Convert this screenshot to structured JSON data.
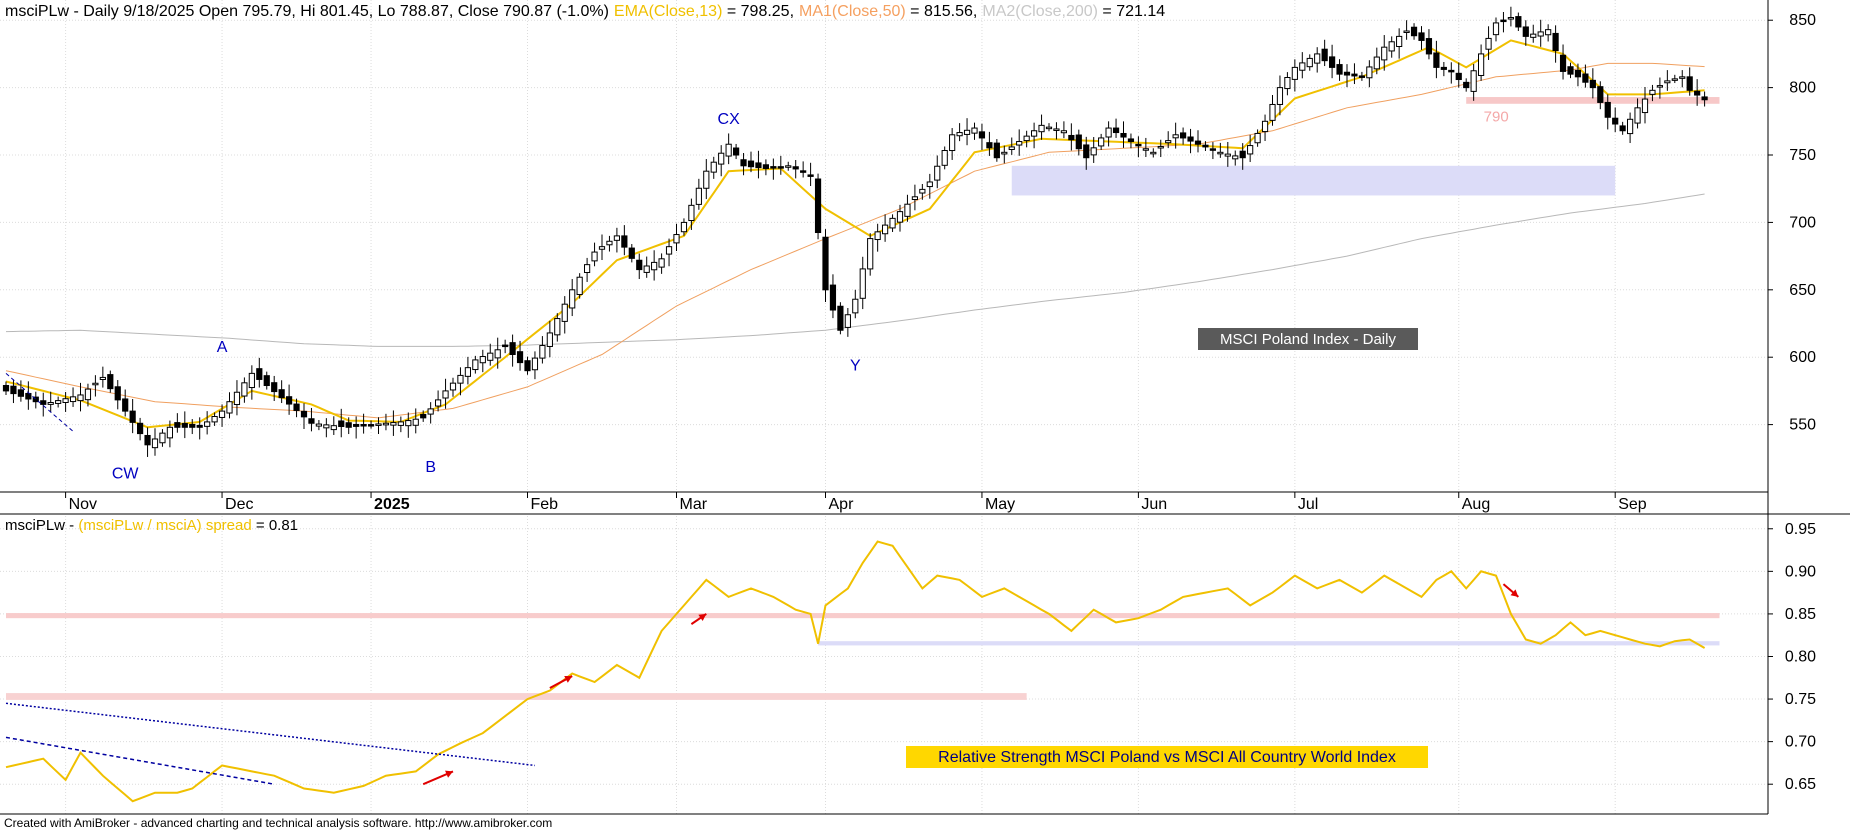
{
  "chart_data": [
    {
      "type": "candlestick",
      "panel": "price",
      "header": {
        "prefix": "msciPLw - Daily 9/18/2025 Open 795.79, Hi 801.45, Lo 788.87, Close 790.87 (-1.0%)",
        "ema_label": "EMA(Close,13)",
        "ema_value": " = 798.25,",
        "ma1_label": "MA1(Close,50)",
        "ma1_value": " = 815.56,",
        "ma2_label": "MA2(Close,200)",
        "ma2_value": " = 721.14"
      },
      "x_range": [
        0,
        228
      ],
      "month_labels": [
        {
          "label": "Nov",
          "i": 8
        },
        {
          "label": "Dec",
          "i": 29
        },
        {
          "label": "2025",
          "i": 49
        },
        {
          "label": "Feb",
          "i": 70
        },
        {
          "label": "Mar",
          "i": 90
        },
        {
          "label": "Apr",
          "i": 110
        },
        {
          "label": "May",
          "i": 131
        },
        {
          "label": "Jun",
          "i": 152
        },
        {
          "label": "Jul",
          "i": 173
        },
        {
          "label": "Aug",
          "i": 195
        },
        {
          "label": "Sep",
          "i": 216
        }
      ],
      "ylim": [
        500,
        865
      ],
      "y_ticks": [
        550,
        600,
        650,
        700,
        750,
        800,
        850
      ],
      "grid": true,
      "close_keys": [
        [
          0,
          575
        ],
        [
          5,
          565
        ],
        [
          10,
          572
        ],
        [
          13,
          585
        ],
        [
          16,
          560
        ],
        [
          19,
          535
        ],
        [
          22,
          548
        ],
        [
          26,
          548
        ],
        [
          29,
          560
        ],
        [
          33,
          588
        ],
        [
          37,
          570
        ],
        [
          41,
          551
        ],
        [
          46,
          548
        ],
        [
          49,
          550
        ],
        [
          53,
          552
        ],
        [
          56,
          555
        ],
        [
          59,
          575
        ],
        [
          63,
          598
        ],
        [
          67,
          608
        ],
        [
          70,
          590
        ],
        [
          73,
          618
        ],
        [
          76,
          650
        ],
        [
          79,
          678
        ],
        [
          82,
          690
        ],
        [
          85,
          665
        ],
        [
          88,
          673
        ],
        [
          91,
          700
        ],
        [
          94,
          738
        ],
        [
          97,
          758
        ],
        [
          99,
          742
        ],
        [
          102,
          740
        ],
        [
          105,
          742
        ],
        [
          108,
          735
        ],
        [
          110,
          650
        ],
        [
          112,
          620
        ],
        [
          114,
          643
        ],
        [
          116,
          688
        ],
        [
          120,
          708
        ],
        [
          124,
          730
        ],
        [
          127,
          765
        ],
        [
          130,
          770
        ],
        [
          133,
          748
        ],
        [
          136,
          760
        ],
        [
          139,
          772
        ],
        [
          142,
          768
        ],
        [
          145,
          748
        ],
        [
          148,
          770
        ],
        [
          151,
          760
        ],
        [
          154,
          752
        ],
        [
          157,
          765
        ],
        [
          160,
          758
        ],
        [
          163,
          752
        ],
        [
          166,
          748
        ],
        [
          169,
          775
        ],
        [
          171,
          800
        ],
        [
          173,
          815
        ],
        [
          176,
          825
        ],
        [
          179,
          810
        ],
        [
          182,
          808
        ],
        [
          185,
          830
        ],
        [
          188,
          842
        ],
        [
          190,
          835
        ],
        [
          192,
          815
        ],
        [
          194,
          812
        ],
        [
          196,
          800
        ],
        [
          198,
          825
        ],
        [
          200,
          848
        ],
        [
          202,
          852
        ],
        [
          204,
          838
        ],
        [
          207,
          843
        ],
        [
          209,
          812
        ],
        [
          211,
          808
        ],
        [
          213,
          800
        ],
        [
          215,
          778
        ],
        [
          217,
          768
        ],
        [
          219,
          785
        ],
        [
          221,
          798
        ],
        [
          223,
          805
        ],
        [
          225,
          808
        ],
        [
          226,
          798
        ],
        [
          228,
          791
        ]
      ],
      "ema_keys": [
        [
          0,
          582
        ],
        [
          10,
          568
        ],
        [
          19,
          548
        ],
        [
          26,
          552
        ],
        [
          33,
          575
        ],
        [
          41,
          565
        ],
        [
          46,
          553
        ],
        [
          53,
          552
        ],
        [
          59,
          565
        ],
        [
          67,
          600
        ],
        [
          76,
          640
        ],
        [
          82,
          672
        ],
        [
          91,
          690
        ],
        [
          97,
          738
        ],
        [
          104,
          740
        ],
        [
          110,
          710
        ],
        [
          116,
          690
        ],
        [
          124,
          710
        ],
        [
          130,
          752
        ],
        [
          139,
          762
        ],
        [
          148,
          760
        ],
        [
          157,
          758
        ],
        [
          166,
          755
        ],
        [
          173,
          792
        ],
        [
          182,
          808
        ],
        [
          191,
          830
        ],
        [
          196,
          815
        ],
        [
          202,
          835
        ],
        [
          209,
          825
        ],
        [
          215,
          795
        ],
        [
          221,
          795
        ],
        [
          228,
          798
        ]
      ],
      "ma1_keys": [
        [
          0,
          590
        ],
        [
          10,
          578
        ],
        [
          20,
          567
        ],
        [
          30,
          563
        ],
        [
          40,
          560
        ],
        [
          50,
          555
        ],
        [
          60,
          562
        ],
        [
          70,
          578
        ],
        [
          80,
          602
        ],
        [
          90,
          638
        ],
        [
          100,
          665
        ],
        [
          110,
          688
        ],
        [
          120,
          710
        ],
        [
          130,
          738
        ],
        [
          140,
          752
        ],
        [
          150,
          755
        ],
        [
          160,
          758
        ],
        [
          170,
          768
        ],
        [
          180,
          785
        ],
        [
          190,
          795
        ],
        [
          200,
          808
        ],
        [
          210,
          813
        ],
        [
          215,
          818
        ],
        [
          221,
          818
        ],
        [
          228,
          815.6
        ]
      ],
      "ma2_keys": [
        [
          0,
          619
        ],
        [
          10,
          620
        ],
        [
          20,
          617
        ],
        [
          30,
          614
        ],
        [
          40,
          610
        ],
        [
          50,
          608
        ],
        [
          60,
          608
        ],
        [
          70,
          609
        ],
        [
          80,
          611
        ],
        [
          90,
          613
        ],
        [
          100,
          616
        ],
        [
          110,
          620
        ],
        [
          120,
          627
        ],
        [
          130,
          635
        ],
        [
          140,
          642
        ],
        [
          150,
          648
        ],
        [
          160,
          656
        ],
        [
          170,
          665
        ],
        [
          180,
          675
        ],
        [
          190,
          688
        ],
        [
          200,
          698
        ],
        [
          210,
          707
        ],
        [
          220,
          714
        ],
        [
          228,
          721.1
        ]
      ],
      "support_zones": [
        {
          "i0": 135,
          "i1": 216,
          "y0": 720,
          "y1": 742,
          "color": "#dcdcf8"
        },
        {
          "i0": 196,
          "i1": 230,
          "y0": 788,
          "y1": 793,
          "color": "#f7c8c8"
        }
      ],
      "downtrend_line": {
        "from": [
          0,
          588
        ],
        "to": [
          9,
          545
        ]
      },
      "wave_labels": [
        {
          "label": "CW",
          "i": 16,
          "y": 510
        },
        {
          "label": "A",
          "i": 29,
          "y": 604
        },
        {
          "label": "B",
          "i": 57,
          "y": 515
        },
        {
          "label": "CX",
          "i": 97,
          "y": 773
        },
        {
          "label": "Y",
          "i": 114,
          "y": 590
        }
      ],
      "level_label": {
        "text": "790",
        "i": 196,
        "y": 775
      },
      "panel_title": "MSCI Poland Index - Daily"
    },
    {
      "type": "line",
      "panel": "relative_strength",
      "header": {
        "prefix": "msciPLw - ",
        "label": "(msciPLw / msciA) spread",
        "value": " = 0.81"
      },
      "ylim": [
        0.615,
        0.965
      ],
      "y_ticks": [
        0.65,
        0.7,
        0.75,
        0.8,
        0.85,
        0.9,
        0.95
      ],
      "grid": true,
      "keys": [
        [
          0,
          0.67
        ],
        [
          5,
          0.68
        ],
        [
          8,
          0.655
        ],
        [
          10,
          0.687
        ],
        [
          13,
          0.66
        ],
        [
          17,
          0.63
        ],
        [
          20,
          0.64
        ],
        [
          23,
          0.64
        ],
        [
          25,
          0.645
        ],
        [
          29,
          0.672
        ],
        [
          33,
          0.665
        ],
        [
          36,
          0.66
        ],
        [
          40,
          0.645
        ],
        [
          44,
          0.64
        ],
        [
          48,
          0.648
        ],
        [
          51,
          0.66
        ],
        [
          55,
          0.665
        ],
        [
          58,
          0.685
        ],
        [
          61,
          0.698
        ],
        [
          64,
          0.71
        ],
        [
          67,
          0.73
        ],
        [
          70,
          0.75
        ],
        [
          73,
          0.76
        ],
        [
          76,
          0.78
        ],
        [
          79,
          0.77
        ],
        [
          82,
          0.79
        ],
        [
          85,
          0.775
        ],
        [
          88,
          0.83
        ],
        [
          91,
          0.86
        ],
        [
          94,
          0.89
        ],
        [
          97,
          0.87
        ],
        [
          100,
          0.88
        ],
        [
          103,
          0.87
        ],
        [
          106,
          0.855
        ],
        [
          108,
          0.85
        ],
        [
          109,
          0.815
        ],
        [
          110,
          0.86
        ],
        [
          113,
          0.88
        ],
        [
          115,
          0.91
        ],
        [
          117,
          0.935
        ],
        [
          119,
          0.93
        ],
        [
          121,
          0.905
        ],
        [
          123,
          0.88
        ],
        [
          125,
          0.895
        ],
        [
          128,
          0.89
        ],
        [
          131,
          0.87
        ],
        [
          134,
          0.88
        ],
        [
          137,
          0.865
        ],
        [
          140,
          0.85
        ],
        [
          143,
          0.83
        ],
        [
          146,
          0.855
        ],
        [
          149,
          0.84
        ],
        [
          152,
          0.845
        ],
        [
          155,
          0.855
        ],
        [
          158,
          0.87
        ],
        [
          161,
          0.875
        ],
        [
          164,
          0.88
        ],
        [
          167,
          0.86
        ],
        [
          170,
          0.875
        ],
        [
          173,
          0.895
        ],
        [
          176,
          0.88
        ],
        [
          179,
          0.89
        ],
        [
          182,
          0.875
        ],
        [
          185,
          0.895
        ],
        [
          188,
          0.88
        ],
        [
          190,
          0.87
        ],
        [
          192,
          0.89
        ],
        [
          194,
          0.9
        ],
        [
          196,
          0.88
        ],
        [
          198,
          0.9
        ],
        [
          200,
          0.895
        ],
        [
          202,
          0.85
        ],
        [
          204,
          0.82
        ],
        [
          206,
          0.815
        ],
        [
          208,
          0.825
        ],
        [
          210,
          0.84
        ],
        [
          212,
          0.825
        ],
        [
          214,
          0.83
        ],
        [
          216,
          0.825
        ],
        [
          218,
          0.82
        ],
        [
          220,
          0.815
        ],
        [
          222,
          0.812
        ],
        [
          224,
          0.818
        ],
        [
          226,
          0.82
        ],
        [
          228,
          0.81
        ]
      ],
      "zones": [
        {
          "i0": 0,
          "i1": 230,
          "y0": 0.845,
          "y1": 0.851,
          "color": "#f8cccc"
        },
        {
          "i0": 0,
          "i1": 137,
          "y0": 0.749,
          "y1": 0.757,
          "color": "#f8d2d2"
        },
        {
          "i0": 109,
          "i1": 230,
          "y0": 0.813,
          "y1": 0.818,
          "color": "#dcdcf8"
        }
      ],
      "trendlines": [
        {
          "from": [
            0,
            0.745
          ],
          "to": [
            71,
            0.672
          ],
          "dash": "2,2"
        },
        {
          "from": [
            0,
            0.705
          ],
          "to": [
            36,
            0.65
          ],
          "dash": "4,3"
        }
      ],
      "arrows": [
        {
          "from": [
            56,
            0.65
          ],
          "to": [
            60,
            0.665
          ]
        },
        {
          "from": [
            73,
            0.763
          ],
          "to": [
            76,
            0.777
          ]
        },
        {
          "from": [
            92,
            0.838
          ],
          "to": [
            94,
            0.85
          ]
        },
        {
          "from": [
            201,
            0.885
          ],
          "to": [
            203,
            0.87
          ]
        }
      ],
      "panel_title": "Relative Strength MSCI Poland vs MSCI All Country World Index"
    }
  ],
  "footer": "Created with AmiBroker - advanced charting and technical analysis software. http://www.amibroker.com"
}
